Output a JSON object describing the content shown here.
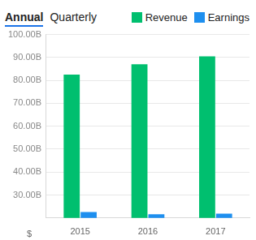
{
  "header": {
    "tabs": [
      "Annual",
      "Quarterly"
    ],
    "active_tab": "Annual"
  },
  "chart_data": {
    "type": "bar",
    "categories": [
      "2015",
      "2016",
      "2017"
    ],
    "series": [
      {
        "name": "Revenue",
        "color": "#00bf6f",
        "values": [
          82.5,
          87,
          90.5
        ]
      },
      {
        "name": "Earnings",
        "color": "#1e8fef",
        "values": [
          22.6,
          21.6,
          21.9
        ]
      }
    ],
    "ylim": [
      20,
      100
    ],
    "yticks": [
      {
        "value": 30,
        "label": "30.00B"
      },
      {
        "value": 40,
        "label": "40.00B"
      },
      {
        "value": 50,
        "label": "50.00B"
      },
      {
        "value": 60,
        "label": "60.00B"
      },
      {
        "value": 70,
        "label": "70.00B"
      },
      {
        "value": 80,
        "label": "80.00B"
      },
      {
        "value": 90,
        "label": "90.00B"
      },
      {
        "value": 100,
        "label": "100.00B"
      }
    ],
    "annotations": [
      "$"
    ],
    "legend": "top-right",
    "grid": true
  }
}
